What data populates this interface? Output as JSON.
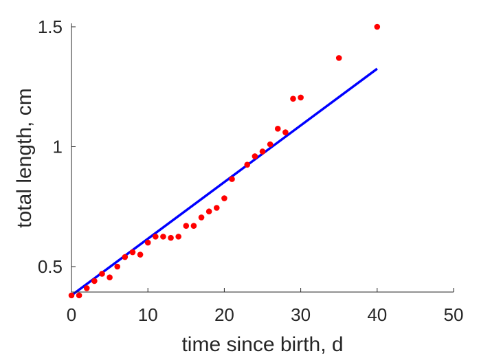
{
  "chart_data": {
    "type": "scatter",
    "title": "",
    "xlabel": "time since birth, d",
    "ylabel": "total length, cm",
    "xlim": [
      0,
      50
    ],
    "ylim": [
      0.38,
      1.5
    ],
    "xticks": [
      "0",
      "10",
      "20",
      "30",
      "40",
      "50"
    ],
    "yticks": [
      "0.5",
      "1",
      "1.5"
    ],
    "grid": false,
    "legend": "none",
    "series": [
      {
        "kind": "points",
        "color": "#ff0000",
        "x": [
          0,
          1,
          2,
          3,
          4,
          5,
          6,
          7,
          8,
          9,
          10,
          11,
          12,
          13,
          14,
          15,
          16,
          17,
          18,
          19,
          20,
          21,
          23,
          24,
          25,
          26,
          27,
          28,
          29,
          30,
          35,
          40
        ],
        "y": [
          0.38,
          0.38,
          0.41,
          0.44,
          0.47,
          0.455,
          0.5,
          0.54,
          0.56,
          0.55,
          0.6,
          0.625,
          0.625,
          0.62,
          0.625,
          0.67,
          0.67,
          0.705,
          0.73,
          0.745,
          0.785,
          0.865,
          0.925,
          0.96,
          0.98,
          1.01,
          1.075,
          1.06,
          1.2,
          1.205,
          1.37,
          1.5
        ]
      },
      {
        "kind": "line",
        "color": "#0000ff",
        "x": [
          0,
          40
        ],
        "y": [
          0.38,
          1.325
        ]
      }
    ]
  }
}
